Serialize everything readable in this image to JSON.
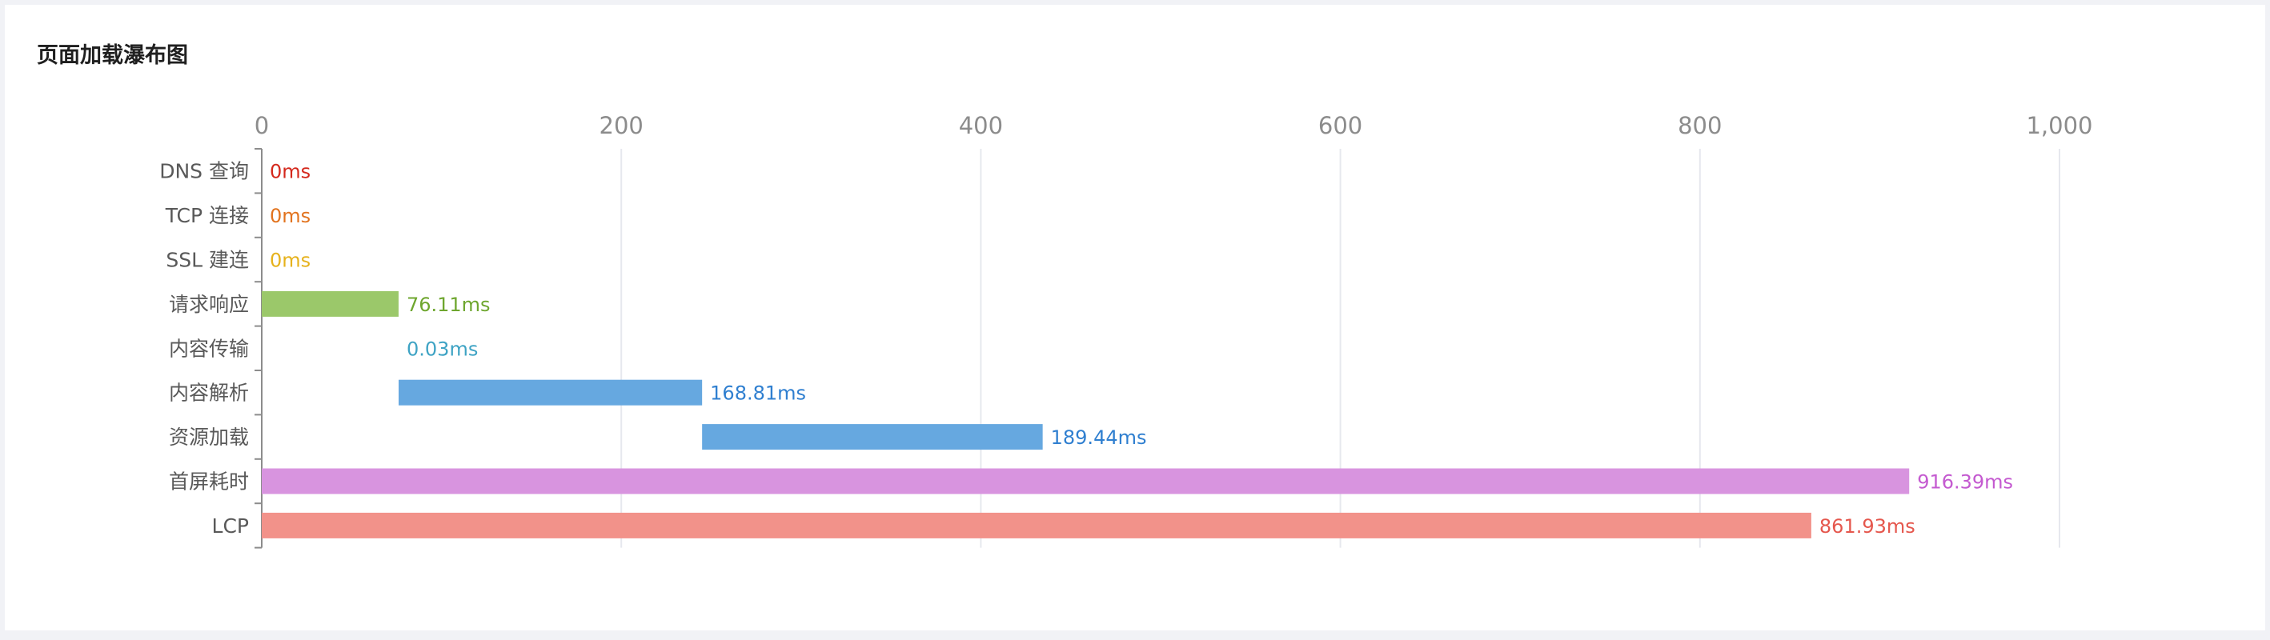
{
  "chart_data": {
    "type": "bar",
    "title": "页面加载瀑布图",
    "orientation": "horizontal",
    "stacked_offset": true,
    "xlim": [
      0,
      1000
    ],
    "x_ticks": [
      0,
      200,
      400,
      600,
      800,
      1000
    ],
    "x_tick_labels": [
      "0",
      "200",
      "400",
      "600",
      "800",
      "1,000"
    ],
    "x_axis_position": "top",
    "grid": true,
    "categories": [
      "DNS 查询",
      "TCP 连接",
      "SSL 建连",
      "请求响应",
      "内容传输",
      "内容解析",
      "资源加载",
      "首屏耗时",
      "LCP"
    ],
    "starts": [
      0,
      0,
      0,
      0,
      76.11,
      76.14,
      244.95,
      0,
      0
    ],
    "values": [
      0,
      0,
      0,
      76.11,
      0.03,
      168.81,
      189.44,
      916.39,
      861.93
    ],
    "data_labels": [
      "0ms",
      "0ms",
      "0ms",
      "76.11ms",
      "0.03ms",
      "168.81ms",
      "189.44ms",
      "916.39ms",
      "861.93ms"
    ],
    "bar_colors": [
      "#f5b3aa",
      "#f5b3aa",
      "#f5b3aa",
      "#9bc86a",
      "#5aa9c9",
      "#66a8e0",
      "#66a8e0",
      "#d894df",
      "#f2928a"
    ],
    "label_colors": [
      "#d4281c",
      "#e2731e",
      "#e6b21c",
      "#6ea62e",
      "#3ea3c4",
      "#2f7fd0",
      "#2f7fd0",
      "#c45ad0",
      "#e5574d"
    ]
  }
}
